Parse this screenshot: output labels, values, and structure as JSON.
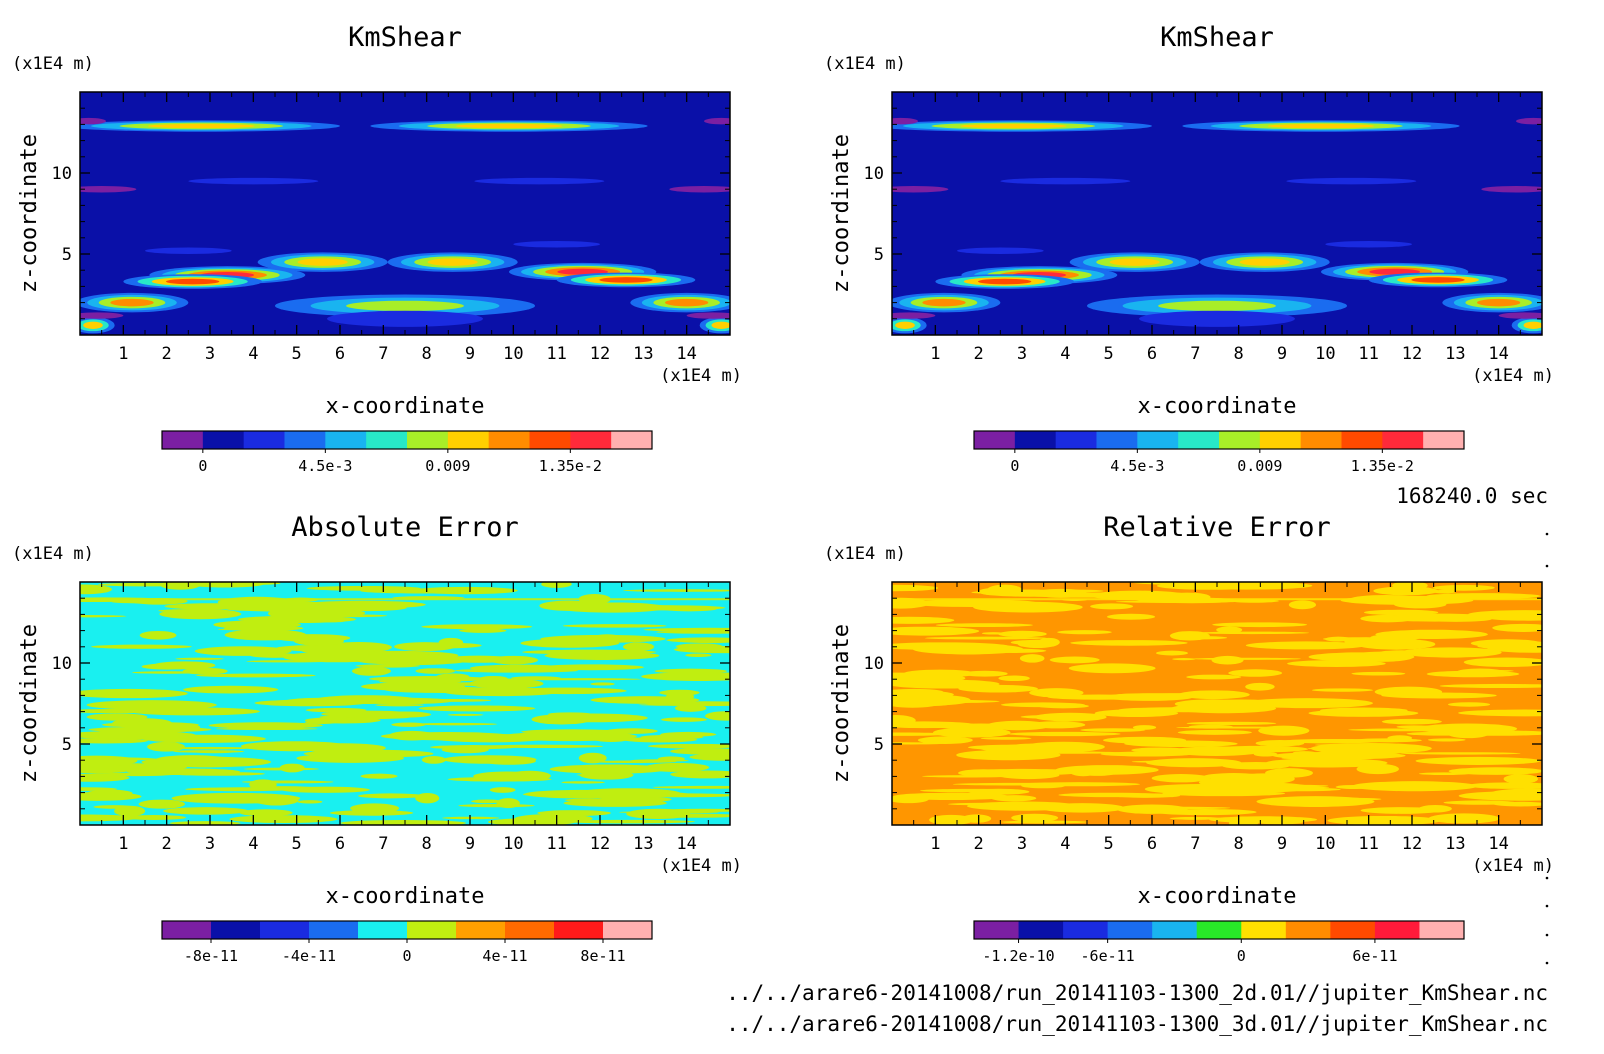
{
  "time_label": "168240.0 sec",
  "files": [
    "../../arare6-20141008/run_20141103-1300_2d.01//jupiter_KmShear.nc",
    "../../arare6-20141008/run_20141103-1300_3d.01//jupiter_KmShear.nc"
  ],
  "chart_data": [
    {
      "type": "heatmap",
      "title": "KmShear",
      "xlabel": "x-coordinate",
      "ylabel": "z-coordinate",
      "x_unit": "(x1E4 m)",
      "y_unit": "(x1E4 m)",
      "xlim": [
        0,
        15
      ],
      "ylim": [
        0,
        15
      ],
      "x_ticks": [
        1,
        2,
        3,
        4,
        5,
        6,
        7,
        8,
        9,
        10,
        11,
        12,
        13,
        14
      ],
      "y_ticks": [
        5,
        10
      ],
      "colorbar": {
        "colors": [
          "#7b1fa2",
          "#0a10a8",
          "#1a2be0",
          "#1a6cf0",
          "#19b4f0",
          "#28e8c8",
          "#a8ee28",
          "#ffd000",
          "#ff8c00",
          "#ff4a00",
          "#ff2a3a",
          "#ffb0b0"
        ],
        "labels": [
          "0",
          "4.5e-3",
          "0.009",
          "1.35e-2"
        ],
        "label_positions": [
          1,
          4,
          7,
          10
        ]
      },
      "pattern": "kmshear"
    },
    {
      "type": "heatmap",
      "title": "KmShear",
      "xlabel": "x-coordinate",
      "ylabel": "z-coordinate",
      "x_unit": "(x1E4 m)",
      "y_unit": "(x1E4 m)",
      "xlim": [
        0,
        15
      ],
      "ylim": [
        0,
        15
      ],
      "x_ticks": [
        1,
        2,
        3,
        4,
        5,
        6,
        7,
        8,
        9,
        10,
        11,
        12,
        13,
        14
      ],
      "y_ticks": [
        5,
        10
      ],
      "colorbar": {
        "colors": [
          "#7b1fa2",
          "#0a10a8",
          "#1a2be0",
          "#1a6cf0",
          "#19b4f0",
          "#28e8c8",
          "#a8ee28",
          "#ffd000",
          "#ff8c00",
          "#ff4a00",
          "#ff2a3a",
          "#ffb0b0"
        ],
        "labels": [
          "0",
          "4.5e-3",
          "0.009",
          "1.35e-2"
        ],
        "label_positions": [
          1,
          4,
          7,
          10
        ]
      },
      "pattern": "kmshear"
    },
    {
      "type": "heatmap",
      "title": "Absolute Error",
      "xlabel": "x-coordinate",
      "ylabel": "z-coordinate",
      "x_unit": "(x1E4 m)",
      "y_unit": "(x1E4 m)",
      "xlim": [
        0,
        15
      ],
      "ylim": [
        0,
        15
      ],
      "x_ticks": [
        1,
        2,
        3,
        4,
        5,
        6,
        7,
        8,
        9,
        10,
        11,
        12,
        13,
        14
      ],
      "y_ticks": [
        5,
        10
      ],
      "colorbar": {
        "colors": [
          "#7b1fa2",
          "#0a10a8",
          "#1a2be0",
          "#1a6cf0",
          "#19f0f0",
          "#c0ee10",
          "#ffa000",
          "#ff6a00",
          "#ff1a1a",
          "#ffb0b0"
        ],
        "labels": [
          "-8e-11",
          "-4e-11",
          "0",
          "4e-11",
          "8e-11"
        ],
        "label_positions": [
          1,
          3,
          5,
          7,
          9
        ]
      },
      "pattern": "noise",
      "noise_colors": [
        "#19f0f0",
        "#c0ee10"
      ]
    },
    {
      "type": "heatmap",
      "title": "Relative Error",
      "xlabel": "x-coordinate",
      "ylabel": "z-coordinate",
      "x_unit": "(x1E4 m)",
      "y_unit": "(x1E4 m)",
      "xlim": [
        0,
        15
      ],
      "ylim": [
        0,
        15
      ],
      "x_ticks": [
        1,
        2,
        3,
        4,
        5,
        6,
        7,
        8,
        9,
        10,
        11,
        12,
        13,
        14
      ],
      "y_ticks": [
        5,
        10
      ],
      "colorbar": {
        "colors": [
          "#7b1fa2",
          "#0a10a8",
          "#1a2be0",
          "#1a6cf0",
          "#19b4f0",
          "#28e828",
          "#ffe000",
          "#ff8c00",
          "#ff4a00",
          "#ff1a3a",
          "#ffb0b0"
        ],
        "labels": [
          "-1.2e-10",
          "-6e-11",
          "0",
          "6e-11"
        ],
        "label_positions": [
          1,
          3,
          6,
          9
        ]
      },
      "pattern": "noise",
      "noise_colors": [
        "#ff9600",
        "#ffe000"
      ]
    }
  ]
}
